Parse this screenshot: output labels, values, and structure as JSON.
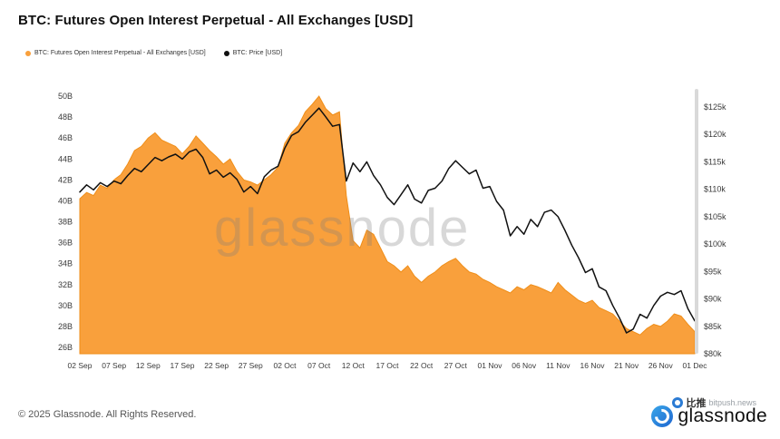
{
  "header": {
    "title": "BTC: Futures Open Interest Perpetual - All Exchanges [USD]"
  },
  "legend": [
    {
      "label": "BTC: Futures Open Interest Perpetual - All Exchanges [USD]",
      "color": "#F9A03C"
    },
    {
      "label": "BTC: Price [USD]",
      "color": "#111111"
    }
  ],
  "watermark": "glassnode",
  "footer": {
    "copyright": "© 2025 Glassnode. All Rights Reserved.",
    "brand": "glassnode",
    "badge_cn": "比推",
    "badge_en": "bitpush.news"
  },
  "chart_data": {
    "type": "area+line",
    "title": "BTC: Futures Open Interest Perpetual - All Exchanges [USD]",
    "x_tick_labels": [
      "02 Sep",
      "07 Sep",
      "12 Sep",
      "17 Sep",
      "22 Sep",
      "27 Sep",
      "02 Oct",
      "07 Oct",
      "12 Oct",
      "17 Oct",
      "22 Oct",
      "27 Oct",
      "01 Nov",
      "06 Nov",
      "11 Nov",
      "16 Nov",
      "21 Nov",
      "26 Nov",
      "01 Dec"
    ],
    "x_tick_positions": [
      0,
      5,
      10,
      15,
      20,
      25,
      30,
      35,
      40,
      45,
      50,
      55,
      60,
      65,
      70,
      75,
      80,
      85,
      90
    ],
    "left_axis": {
      "ticks": [
        "50B",
        "48B",
        "46B",
        "44B",
        "42B",
        "40B",
        "38B",
        "36B",
        "34B",
        "32B",
        "30B",
        "28B",
        "26B"
      ],
      "tick_values": [
        50,
        48,
        46,
        44,
        42,
        40,
        38,
        36,
        34,
        32,
        30,
        28,
        26
      ],
      "unit": "B"
    },
    "right_axis": {
      "ticks": [
        "$125k",
        "$120k",
        "$115k",
        "$110k",
        "$105k",
        "$100k",
        "$95k",
        "$90k",
        "$85k",
        "$80k"
      ],
      "tick_values": [
        125,
        120,
        115,
        110,
        105,
        100,
        95,
        90,
        85,
        80
      ],
      "unit": "$k"
    },
    "grid": false,
    "legend_position": "top-left",
    "series": [
      {
        "name": "BTC: Futures Open Interest Perpetual - All Exchanges [USD]",
        "type": "area",
        "axis": "left",
        "color": "#F9A03C",
        "edge_color": "#EF8E19",
        "values": [
          40.2,
          40.8,
          40.5,
          41.5,
          41.2,
          42.0,
          42.5,
          43.5,
          44.8,
          45.2,
          46.0,
          46.5,
          45.8,
          45.5,
          45.2,
          44.5,
          45.2,
          46.2,
          45.5,
          44.8,
          44.2,
          43.5,
          44.0,
          42.8,
          42.0,
          41.8,
          41.5,
          42.0,
          42.5,
          43.2,
          45.5,
          46.5,
          47.2,
          48.5,
          49.2,
          50.0,
          48.8,
          48.2,
          48.5,
          40.5,
          36.2,
          35.5,
          37.2,
          36.8,
          35.5,
          34.2,
          33.8,
          33.2,
          33.8,
          32.8,
          32.2,
          32.8,
          33.2,
          33.8,
          34.2,
          34.5,
          33.8,
          33.2,
          33.0,
          32.5,
          32.2,
          31.8,
          31.5,
          31.2,
          31.8,
          31.5,
          32.0,
          31.8,
          31.5,
          31.2,
          32.2,
          31.5,
          31.0,
          30.5,
          30.2,
          30.5,
          29.8,
          29.5,
          29.2,
          28.5,
          27.8,
          27.5,
          27.2,
          27.8,
          28.2,
          28.0,
          28.5,
          29.2,
          29.0,
          28.2,
          27.5
        ]
      },
      {
        "name": "BTC: Price [USD]",
        "type": "line",
        "axis": "right",
        "color": "#111111",
        "values": [
          109.5,
          110.8,
          109.9,
          111.2,
          110.5,
          111.5,
          111.0,
          112.5,
          113.8,
          113.2,
          114.5,
          115.8,
          115.2,
          115.9,
          116.4,
          115.5,
          116.8,
          117.3,
          115.8,
          112.8,
          113.5,
          112.2,
          113.0,
          111.8,
          109.5,
          110.5,
          109.2,
          112.3,
          113.5,
          114.2,
          117.5,
          119.8,
          120.5,
          122.2,
          123.5,
          124.8,
          123.2,
          121.5,
          121.8,
          111.5,
          114.8,
          113.2,
          115.0,
          112.5,
          110.8,
          108.5,
          107.2,
          109.0,
          110.8,
          108.2,
          107.5,
          109.8,
          110.2,
          111.5,
          113.8,
          115.2,
          114.0,
          112.8,
          113.5,
          110.2,
          110.5,
          107.8,
          106.2,
          101.5,
          103.2,
          101.8,
          104.5,
          103.2,
          105.8,
          106.2,
          105.0,
          102.5,
          99.8,
          97.5,
          94.8,
          95.5,
          92.2,
          91.5,
          88.8,
          86.5,
          83.8,
          84.5,
          87.2,
          86.5,
          88.8,
          90.5,
          91.2,
          90.8,
          91.5,
          88.2,
          86.0
        ]
      }
    ]
  }
}
